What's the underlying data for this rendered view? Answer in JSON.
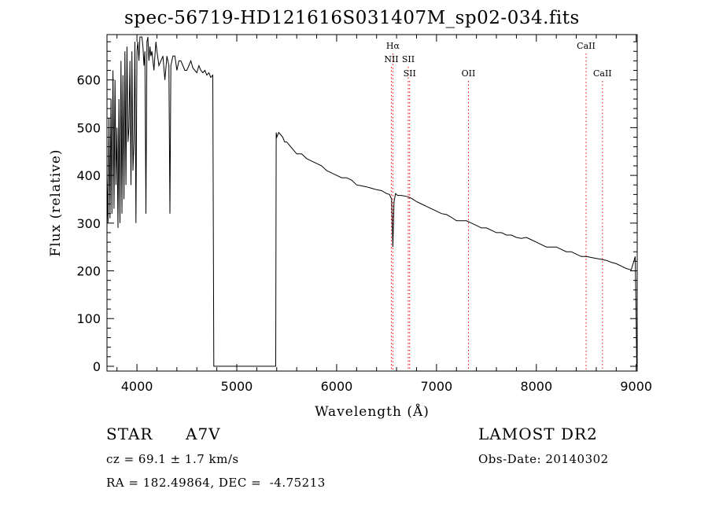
{
  "chart_data": {
    "type": "line",
    "title": "spec-56719-HD121616S031407M_sp02-034.fits",
    "xlabel": "Wavelength (Å)",
    "ylabel": "Flux (relative)",
    "xlim": [
      3700,
      9010
    ],
    "ylim": [
      -10,
      695
    ],
    "x_ticks": [
      4000,
      5000,
      6000,
      7000,
      8000,
      9000
    ],
    "y_ticks": [
      0,
      100,
      200,
      300,
      400,
      500,
      600
    ],
    "grid": false,
    "series": [
      {
        "x": [
          3700,
          3710,
          3720,
          3730,
          3740,
          3750,
          3760,
          3770,
          3780,
          3790,
          3800,
          3810,
          3820,
          3830,
          3840,
          3850,
          3860,
          3870,
          3880,
          3890,
          3900,
          3910,
          3920,
          3930,
          3940,
          3950,
          3960,
          3970,
          3980,
          3990,
          4000,
          4010,
          4020,
          4030,
          4040,
          4050,
          4060,
          4070,
          4080,
          4090,
          4100,
          4110,
          4120,
          4130,
          4140,
          4150,
          4160,
          4170,
          4180,
          4190,
          4200,
          4220,
          4240,
          4260,
          4280,
          4300,
          4320,
          4330,
          4340,
          4350,
          4360,
          4380,
          4400,
          4420,
          4440,
          4460,
          4480,
          4500,
          4520,
          4540,
          4560,
          4580,
          4600,
          4620,
          4640,
          4660,
          4680,
          4700,
          4720,
          4740,
          4760,
          4770,
          4780,
          4790,
          4800,
          5300,
          5390,
          5395,
          5400,
          5420,
          5440,
          5460,
          5480,
          5500,
          5520,
          5540,
          5560,
          5580,
          5600,
          5650,
          5700,
          5750,
          5800,
          5850,
          5900,
          5950,
          6000,
          6050,
          6100,
          6150,
          6200,
          6250,
          6300,
          6350,
          6400,
          6450,
          6500,
          6530,
          6550,
          6563,
          6575,
          6590,
          6610,
          6650,
          6700,
          6750,
          6800,
          6850,
          6900,
          6950,
          7000,
          7050,
          7100,
          7150,
          7200,
          7250,
          7300,
          7350,
          7400,
          7450,
          7500,
          7550,
          7600,
          7650,
          7700,
          7750,
          7800,
          7850,
          7900,
          7950,
          8000,
          8050,
          8100,
          8150,
          8200,
          8250,
          8300,
          8350,
          8400,
          8450,
          8500,
          8550,
          8600,
          8650,
          8700,
          8750,
          8800,
          8850,
          8900,
          8950,
          8990,
          9000,
          9005
        ],
        "y": [
          400,
          300,
          520,
          310,
          560,
          320,
          620,
          330,
          600,
          380,
          500,
          290,
          560,
          300,
          640,
          320,
          610,
          350,
          660,
          380,
          670,
          470,
          500,
          640,
          380,
          660,
          410,
          470,
          680,
          300,
          660,
          680,
          640,
          690,
          690,
          690,
          670,
          630,
          660,
          320,
          680,
          690,
          640,
          670,
          650,
          660,
          640,
          620,
          650,
          680,
          660,
          630,
          640,
          650,
          600,
          650,
          630,
          320,
          630,
          640,
          650,
          650,
          620,
          640,
          640,
          630,
          620,
          620,
          630,
          640,
          625,
          620,
          615,
          630,
          620,
          615,
          620,
          610,
          615,
          605,
          610,
          0,
          0,
          0,
          0,
          0,
          0,
          490,
          480,
          490,
          485,
          480,
          470,
          470,
          465,
          460,
          455,
          450,
          445,
          445,
          435,
          430,
          425,
          420,
          410,
          405,
          400,
          395,
          395,
          390,
          380,
          378,
          376,
          373,
          370,
          368,
          362,
          360,
          350,
          250,
          345,
          362,
          358,
          358,
          356,
          352,
          345,
          340,
          335,
          330,
          325,
          320,
          318,
          312,
          305,
          305,
          305,
          300,
          295,
          290,
          290,
          285,
          280,
          280,
          275,
          275,
          270,
          268,
          270,
          265,
          260,
          255,
          250,
          250,
          250,
          245,
          240,
          240,
          235,
          230,
          230,
          228,
          226,
          224,
          222,
          218,
          215,
          210,
          205,
          202,
          230,
          100,
          0
        ],
        "stroke": "#000000"
      }
    ],
    "lines": [
      {
        "label": "Hα",
        "x": 6563,
        "row": 0
      },
      {
        "label": "NII",
        "x": 6548,
        "row": 1
      },
      {
        "label": "SII",
        "x": 6717,
        "row": 1
      },
      {
        "label": "SII",
        "x": 6731,
        "row": 2
      },
      {
        "label": "OII",
        "x": 7320,
        "row": 2
      },
      {
        "label": "CaII",
        "x": 8498,
        "row": 0
      },
      {
        "label": "CaII",
        "x": 8662,
        "row": 2
      }
    ],
    "line_color": "#ff0000"
  },
  "footer": {
    "object_type": "STAR",
    "subclass": "A7V",
    "survey": "LAMOST DR2",
    "cz": "cz = 69.1 ± 1.7 km/s",
    "obs_date": "Obs-Date: 20140302",
    "coords": "RA = 182.49864, DEC =  -4.75213"
  }
}
